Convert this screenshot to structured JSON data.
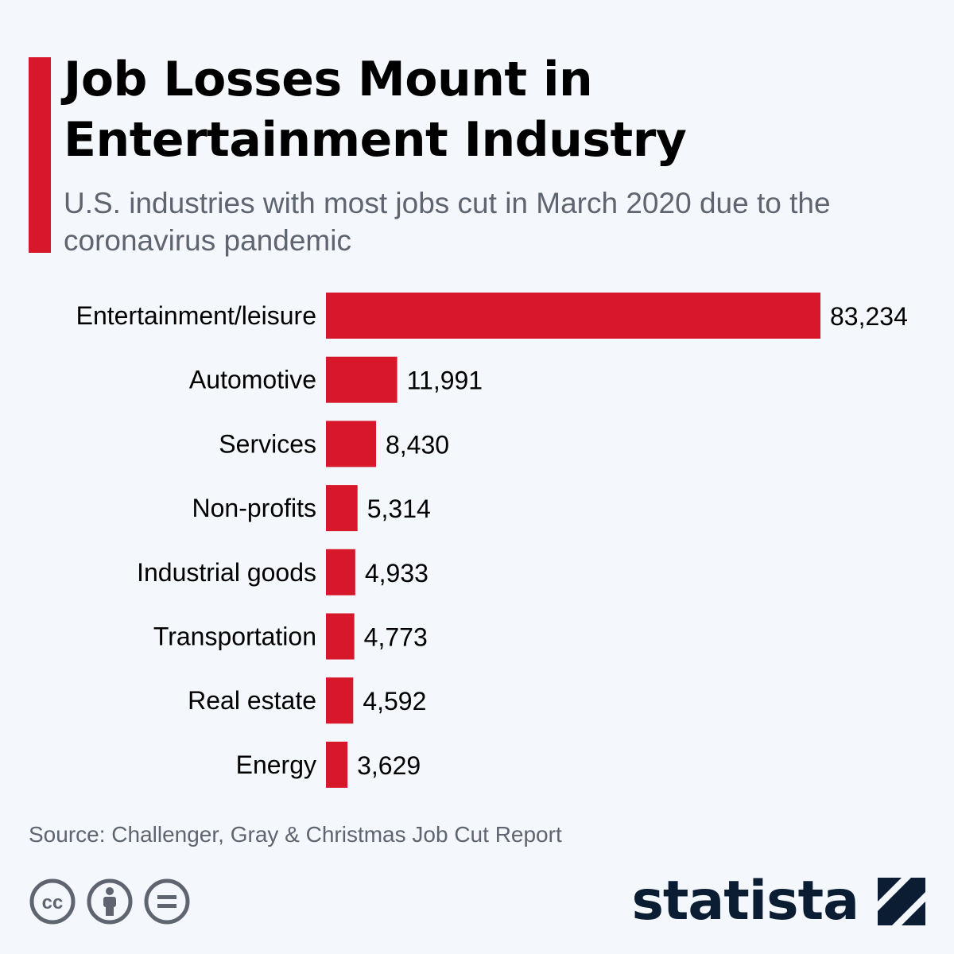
{
  "header": {
    "title": "Job Losses Mount in Entertainment Industry",
    "subtitle": "U.S. industries with most jobs cut in March 2020 due to the coronavirus pandemic"
  },
  "chart_data": {
    "type": "bar",
    "orientation": "horizontal",
    "title": "Job Losses Mount in Entertainment Industry",
    "subtitle": "U.S. industries with most jobs cut in March 2020 due to the coronavirus pandemic",
    "categories": [
      "Entertainment/leisure",
      "Automotive",
      "Services",
      "Non-profits",
      "Industrial goods",
      "Transportation",
      "Real estate",
      "Energy"
    ],
    "values": [
      83234,
      11991,
      8430,
      5314,
      4933,
      4773,
      4592,
      3629
    ],
    "value_labels": [
      "83,234",
      "11,991",
      "8,430",
      "5,314",
      "4,933",
      "4,773",
      "4,592",
      "3,629"
    ],
    "xlim": [
      0,
      83234
    ],
    "grid": false,
    "legend": "none",
    "bar_color": "#d7182a"
  },
  "footer": {
    "source": "Source: Challenger, Gray & Christmas Job Cut Report",
    "license_icons": [
      "creative-commons-icon",
      "attribution-icon",
      "no-derivatives-icon"
    ],
    "brand": "statista"
  },
  "colors": {
    "accent": "#d7182a",
    "text": "#000000",
    "muted": "#5e6570",
    "brand": "#0b1d33",
    "background": "#f4f7fb"
  }
}
